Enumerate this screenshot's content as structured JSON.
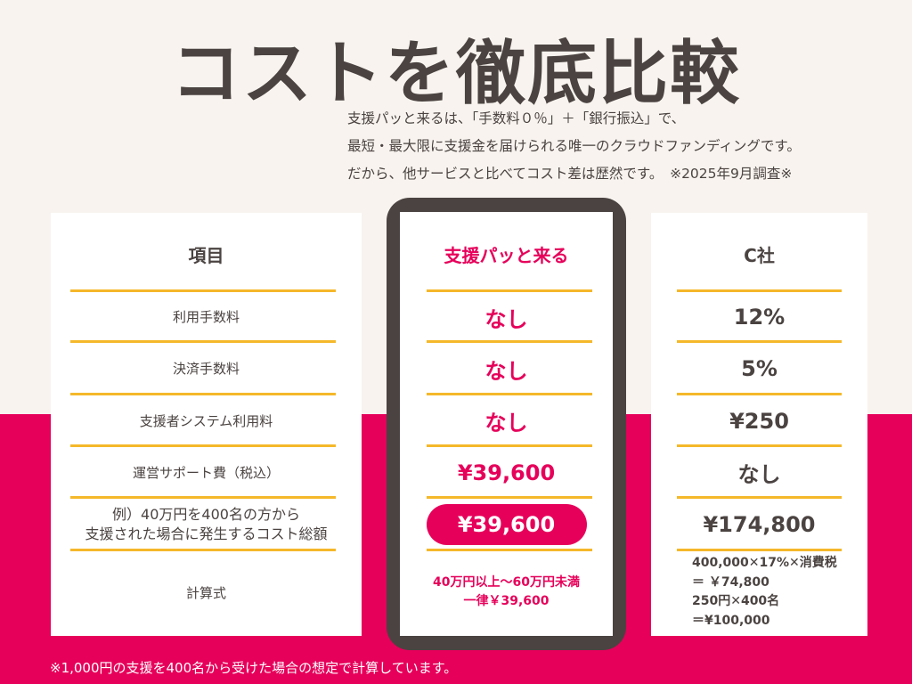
{
  "title": "コストを徹底比較",
  "intro": [
    "支援パッと来るは、「手数料０％」＋「銀行振込」で、",
    "最短・最大限に支援金を届けられる唯一のクラウドファンディングです。",
    "だから、他サービスと比べてコスト差は歴然です。　※2025年9月調査※"
  ],
  "columns": {
    "item": "項目",
    "ours": "支援パッと来る",
    "competitor": "C社"
  },
  "rows": [
    {
      "label": "利用手数料",
      "ours": "なし",
      "competitor": "12%"
    },
    {
      "label": "決済手数料",
      "ours": "なし",
      "competitor": "5%"
    },
    {
      "label": "支援者システム利用料",
      "ours": "なし",
      "competitor": "¥250"
    },
    {
      "label": "運営サポート費（税込）",
      "ours": "¥39,600",
      "competitor": "なし"
    },
    {
      "label": "例）40万円を400名の方から",
      "label2": "支援された場合に発生するコスト総額",
      "ours": "¥39,600",
      "competitor": "¥174,800"
    },
    {
      "label": "計算式",
      "ours": "40万円以上～60万円未満",
      "ours2": "一律￥39,600",
      "competitor": [
        "400,000✕17%✕消費税",
        "＝ ￥74,800",
        "250円✕400名",
        "＝¥100,000"
      ]
    }
  ],
  "footnote": "※1,000円の支援を400名から受けた場合の想定で計算しています。",
  "colors": {
    "pink": "#e6005a",
    "dark": "#4a4341",
    "gold": "#f5b82a",
    "background": "#f8f3ee"
  }
}
